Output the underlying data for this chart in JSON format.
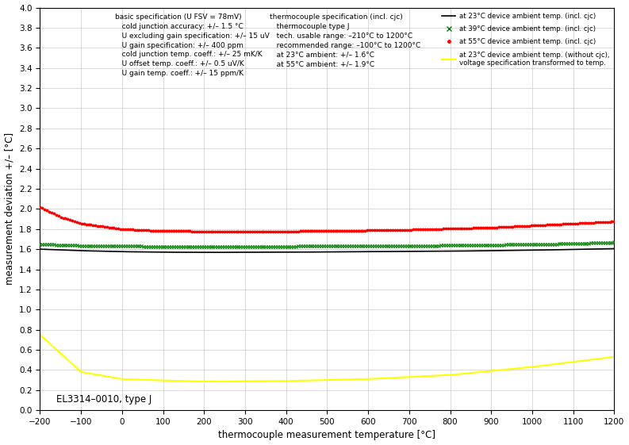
{
  "title": "",
  "xlabel": "thermocouple measurement temperature [°C]",
  "ylabel": "measurement deviation +/– [°C]",
  "xlim": [
    -200,
    1200
  ],
  "ylim": [
    0,
    4
  ],
  "annotation_text": "EL3314–0010, type J",
  "legend_entries": [
    "at 23°C device ambient temp. (incl. cjc)  —",
    "at 39°C device ambient temp. (incl. cjc)  ×",
    "at 55°C device ambient temp. (incl. cjc)  •",
    "at 23°C device ambient temp. (without cjc),\nvoltage specification transformed to temp."
  ],
  "infobox_left": [
    "basic specification (U FSV = 78mV)",
    "   cold junction accuracy: +/– 1.5 °C",
    "   U excluding gain specification: +/– 15 uV",
    "   U gain specification: +/– 400 ppm",
    "   cold junction temp. coeff.: +/– 25 mK/K",
    "   U offset temp. coeff.: +/– 0.5 uV/K",
    "   U gain temp. coeff.: +/– 15 ppm/K"
  ],
  "infobox_right": [
    "thermocouple specification (incl. cjc)",
    "   thermocouple type J",
    "   tech. usable range: –210°C to 1200°C",
    "   recommended range: –100°C to 1200°C",
    "   at 23°C ambient: +/– 1.6°C",
    "   at 55°C ambient: +/– 1.9°C"
  ],
  "background_color": "white",
  "grid_color": "#cccccc",
  "figsize": [
    7.93,
    5.61
  ],
  "dpi": 100
}
